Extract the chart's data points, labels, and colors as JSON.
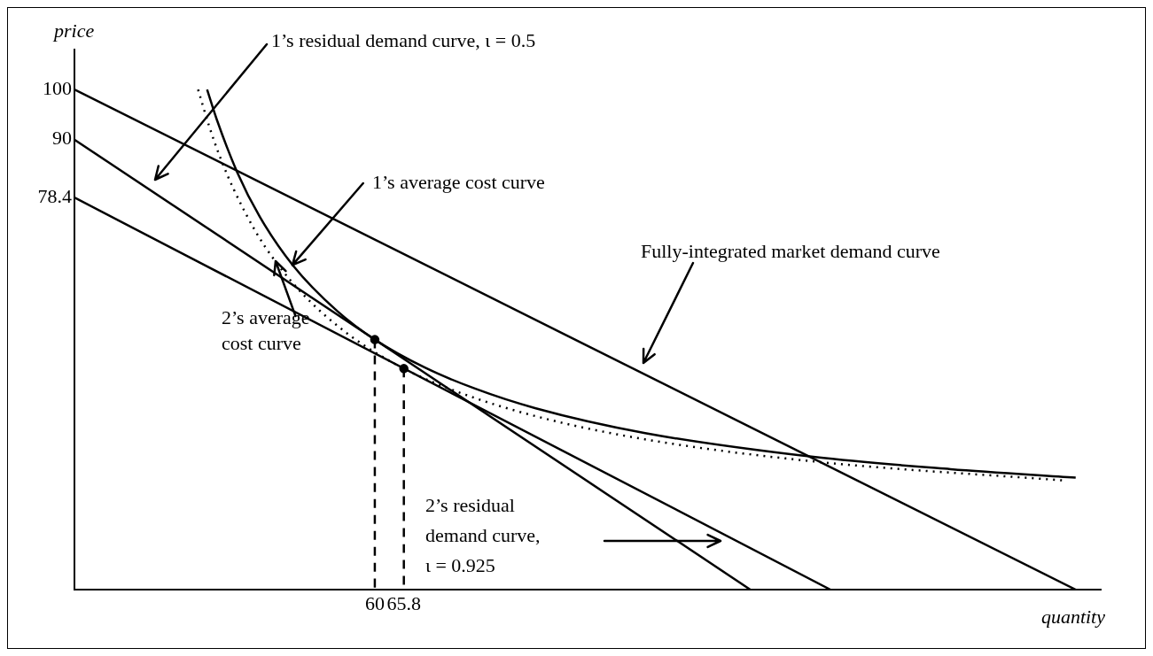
{
  "chart_data": {
    "type": "line",
    "xlabel": "quantity",
    "ylabel": "price",
    "xlim": [
      0,
      205
    ],
    "ylim": [
      0,
      108
    ],
    "xticks": [
      60,
      65.8
    ],
    "yticks": [
      78.4,
      90,
      100
    ],
    "grid": false,
    "legend": false,
    "series": [
      {
        "color": "#000000",
        "x": [
          0,
          200
        ],
        "values": [
          100,
          0
        ]
      },
      {
        "color": "#000000",
        "x": [
          0,
          135
        ],
        "values": [
          90,
          0
        ]
      },
      {
        "color": "#000000",
        "x": [
          0,
          151
        ],
        "values": [
          78.4,
          0
        ]
      },
      {
        "color": "#000000",
        "x": [
          26.5,
          28.4,
          32.5,
          37,
          43.6,
          52.5,
          60,
          70,
          80,
          92,
          114,
          148,
          175,
          200
        ],
        "values": [
          100,
          94.1,
          83.5,
          74.6,
          64.9,
          55.7,
          50,
          44.4,
          40.2,
          36.3,
          31.3,
          26.5,
          24.1,
          22.4
        ]
      },
      {
        "color": "#000000",
        "line_style": "dotted",
        "x": [
          24.7,
          26.9,
          29.2,
          31.8,
          36.2,
          40.1,
          46,
          54.8,
          65.8,
          77.2,
          93.6,
          114.3,
          148,
          198
        ],
        "values": [
          100,
          92.7,
          86.2,
          80.1,
          71.6,
          65.7,
          58.7,
          51,
          44.2,
          39.3,
          34.3,
          30,
          25.6,
          21.8
        ]
      },
      {
        "color": "#000000",
        "line_style": "dashed",
        "x": [
          60,
          60
        ],
        "values": [
          50,
          0
        ]
      },
      {
        "color": "#000000",
        "line_style": "dashed",
        "x": [
          65.8,
          65.8
        ],
        "values": [
          44.2,
          0
        ]
      },
      {
        "type": "scatter",
        "color": "#000000",
        "marker": "circle",
        "x": [
          60,
          65.8
        ],
        "values": [
          50,
          44.2
        ]
      }
    ],
    "annotations": [
      "1’s residual demand curve, ι = 0.5",
      {
        "text": "1’s average cost curve",
        "x": 43.6,
        "y": 64.9
      },
      "Fully-integrated market demand curve",
      {
        "text": "2’s average\ncost curve",
        "x": 40.1,
        "y": 65.7
      },
      "2’s residual\ndemand curve,\nι = 0.925"
    ]
  }
}
